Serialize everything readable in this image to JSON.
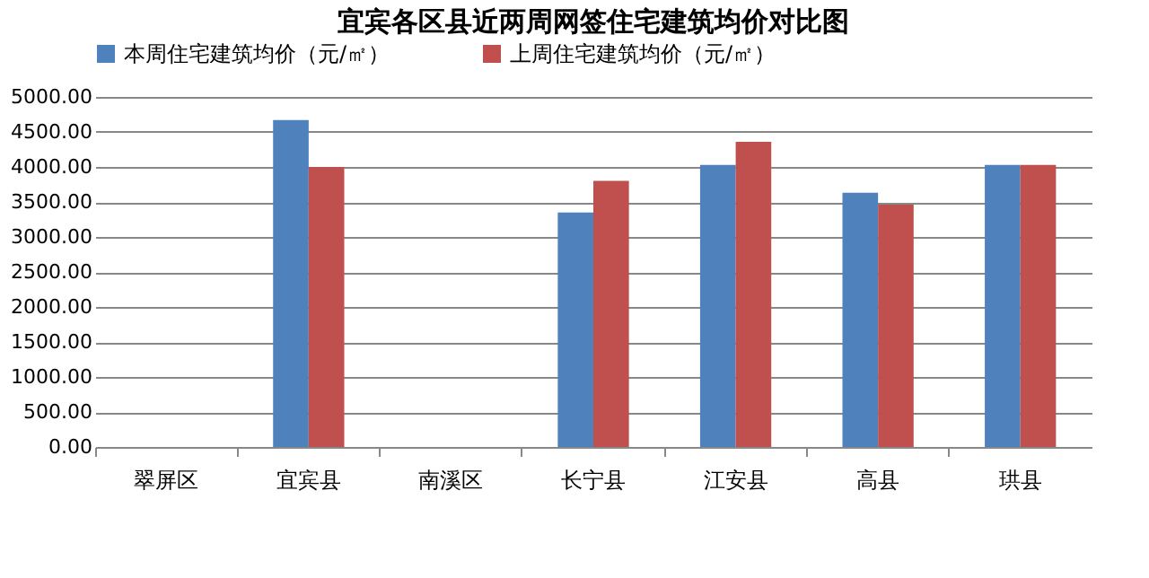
{
  "chart_data": {
    "type": "bar",
    "title": "宜宾各区县近两周网签住宅建筑均价对比图",
    "categories": [
      "翠屏区",
      "宜宾县",
      "南溪区",
      "长宁县",
      "江安县",
      "高县",
      "珙县"
    ],
    "series": [
      {
        "name": "本周住宅建筑均价（元/㎡）",
        "color": "#4f81bd",
        "values": [
          null,
          4670,
          null,
          3350,
          4030,
          3630,
          4030
        ]
      },
      {
        "name": "上周住宅建筑均价（元/㎡）",
        "color": "#c0504d",
        "values": [
          null,
          4000,
          null,
          3800,
          4360,
          3460,
          4030
        ]
      }
    ],
    "ylim": [
      0,
      5000
    ],
    "yticks": [
      {
        "value": 0,
        "label": "0.00"
      },
      {
        "value": 500,
        "label": "500.00"
      },
      {
        "value": 1000,
        "label": "1000.00"
      },
      {
        "value": 1500,
        "label": "1500.00"
      },
      {
        "value": 2000,
        "label": "2000.00"
      },
      {
        "value": 2500,
        "label": "2500.00"
      },
      {
        "value": 3000,
        "label": "3000.00"
      },
      {
        "value": 3500,
        "label": "3500.00"
      },
      {
        "value": 4000,
        "label": "4000.00"
      },
      {
        "value": 4500,
        "label": "4500.00"
      },
      {
        "value": 5000,
        "label": "5000.00"
      }
    ],
    "grid": "y",
    "legend": "top"
  }
}
